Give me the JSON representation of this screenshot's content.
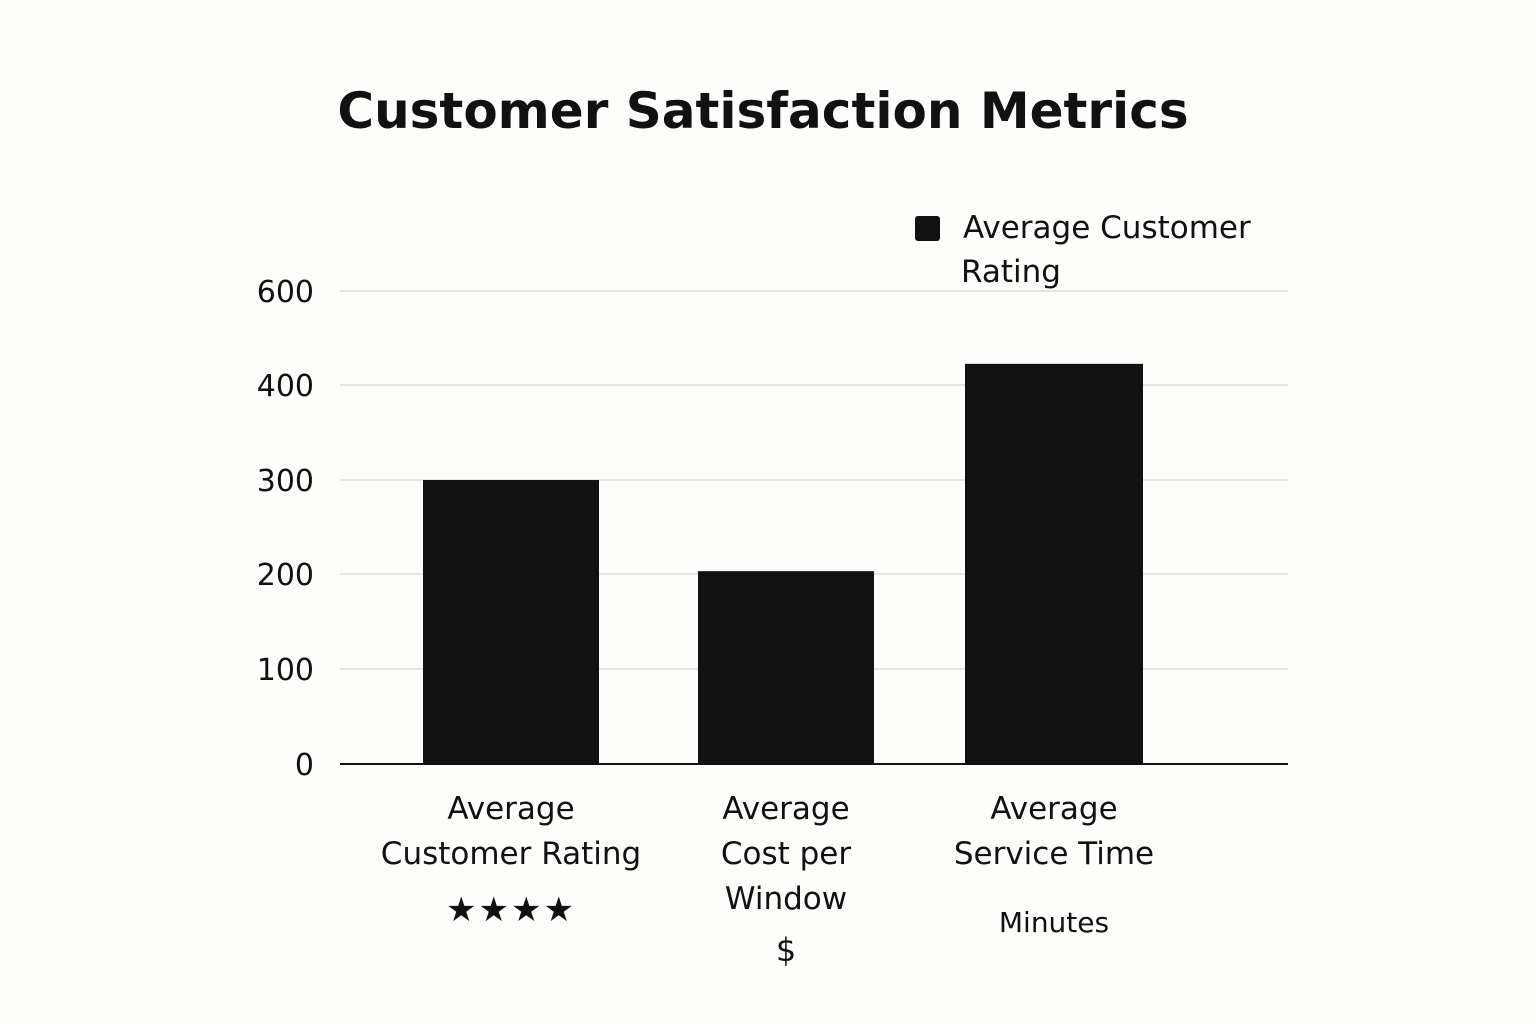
{
  "chart_data": {
    "type": "bar",
    "title": "Customer Satisfaction Metrics",
    "xlabel": "",
    "ylabel": "",
    "yticks": [
      0,
      100,
      200,
      300,
      400,
      600
    ],
    "ylim": [
      0,
      600
    ],
    "grid": true,
    "legend": {
      "position": "top-right",
      "entries": [
        {
          "label_lines": [
            "Average Customer",
            "Rating"
          ],
          "color": "#111111"
        }
      ]
    },
    "categories": [
      {
        "label_lines": [
          "Average",
          "Customer Rating"
        ],
        "unit": "★★★★",
        "value": 300
      },
      {
        "label_lines": [
          "Average",
          "Cost per",
          "Window"
        ],
        "unit": "$",
        "value": 203
      },
      {
        "label_lines": [
          "Average",
          "Service Time"
        ],
        "unit": "Minutes",
        "value": 445
      }
    ],
    "series": [
      {
        "name": "Average Customer Rating",
        "values": [
          300,
          203,
          445
        ],
        "color": "#111111"
      }
    ]
  }
}
